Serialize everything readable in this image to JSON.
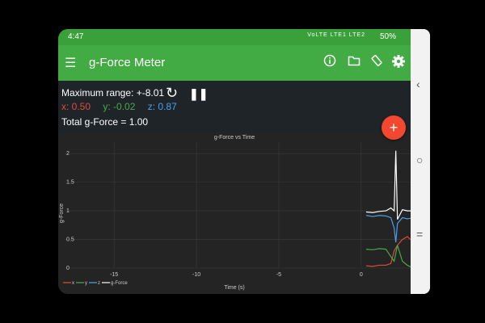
{
  "status_bar": {
    "time": "4:47",
    "battery": "50%",
    "signal": "VoLTE LTE1 LTE2"
  },
  "toolbar": {
    "title": "g-Force Meter",
    "icons": [
      "menu-icon",
      "info-icon",
      "folder-icon",
      "screen-rotation-icon",
      "settings-icon"
    ]
  },
  "readout": {
    "max_range": "Maximum range: +-8.01",
    "x": "x: 0.50",
    "y": "y: -0.02",
    "z": "z: 0.87",
    "total": "Total g-Force = 1.00"
  },
  "colors": {
    "accent": "#43ab44",
    "x": "#e04a3a",
    "y": "#49a84a",
    "z": "#4aa0e8",
    "total": "#ffffff",
    "fab": "#f4472f"
  },
  "fab_label": "+",
  "chart_data": {
    "type": "line",
    "title": "g-Force vs Time",
    "xlabel": "Time (s)",
    "ylabel": "g-Force",
    "xlim": [
      -18,
      3
    ],
    "ylim": [
      0,
      2.2
    ],
    "x_ticks": [
      "-15",
      "-10",
      "-5",
      "0"
    ],
    "y_ticks": [
      "0",
      "0.5",
      "1",
      "1.5",
      "2"
    ],
    "legend": [
      "x",
      "y",
      "z",
      "g-Force"
    ],
    "series": [
      {
        "name": "x",
        "color": "#e04a3a",
        "x": [
          0.3,
          0.7,
          1.1,
          1.5,
          1.8,
          2.0,
          2.2,
          2.5,
          2.8,
          3.0
        ],
        "values": [
          0.04,
          0.03,
          0.05,
          0.05,
          0.08,
          0.3,
          0.4,
          0.5,
          0.55,
          0.5
        ]
      },
      {
        "name": "y",
        "color": "#49a84a",
        "x": [
          0.3,
          0.7,
          1.1,
          1.5,
          1.8,
          2.0,
          2.2,
          2.5,
          2.8,
          3.0
        ],
        "values": [
          0.33,
          0.32,
          0.34,
          0.33,
          0.2,
          0.12,
          0.4,
          0.12,
          0.05,
          0.02
        ]
      },
      {
        "name": "z",
        "color": "#4aa0e8",
        "x": [
          0.3,
          0.7,
          1.1,
          1.5,
          1.8,
          2.0,
          2.1,
          2.2,
          2.5,
          2.8,
          3.0
        ],
        "values": [
          0.92,
          0.9,
          0.92,
          0.91,
          0.88,
          0.7,
          0.45,
          0.78,
          0.88,
          0.86,
          0.87
        ]
      },
      {
        "name": "g-Force",
        "color": "#ffffff",
        "x": [
          0.3,
          0.7,
          1.1,
          1.5,
          1.8,
          2.0,
          2.1,
          2.2,
          2.5,
          2.8,
          3.0
        ],
        "values": [
          0.98,
          0.97,
          0.99,
          1.0,
          1.05,
          1.0,
          2.05,
          0.85,
          1.02,
          1.0,
          1.0
        ]
      }
    ]
  }
}
